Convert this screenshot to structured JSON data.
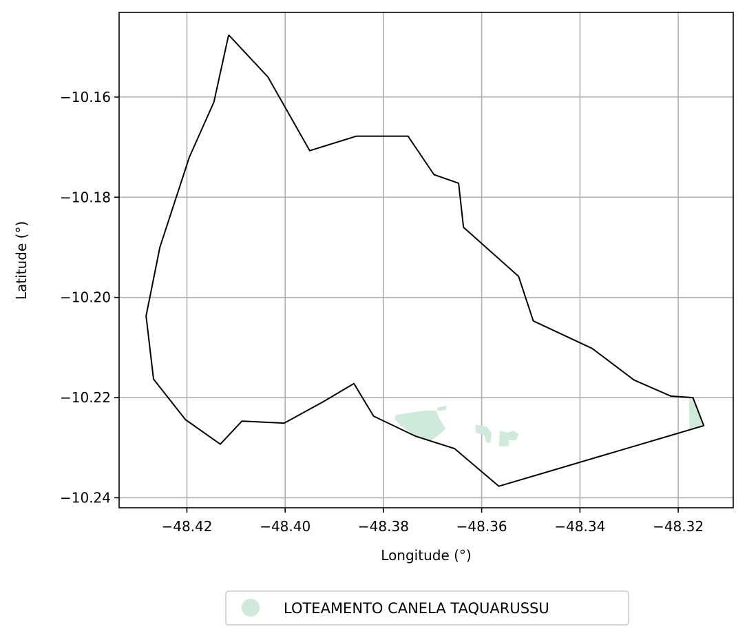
{
  "chart_data": {
    "type": "map",
    "xlabel": "Longitude (°)",
    "ylabel": "Latitude (°)",
    "xlim": [
      -48.4338,
      -48.3088
    ],
    "ylim": [
      -10.242,
      -10.1431
    ],
    "grid": true,
    "x_ticks": [
      -48.42,
      -48.4,
      -48.38,
      -48.36,
      -48.34,
      -48.32
    ],
    "y_ticks": [
      -10.16,
      -10.18,
      -10.2,
      -10.22,
      -10.24
    ],
    "x_tick_labels": [
      "−48.42",
      "−48.40",
      "−48.38",
      "−48.36",
      "−48.34",
      "−48.32"
    ],
    "y_tick_labels": [
      "−10.16",
      "−10.18",
      "−10.20",
      "−10.22",
      "−10.24"
    ],
    "boundary": {
      "color": "#000000",
      "coords": [
        [
          -48.4115,
          -10.1476
        ],
        [
          -48.4035,
          -10.156
        ],
        [
          -48.395,
          -10.1707
        ],
        [
          -48.3855,
          -10.1678
        ],
        [
          -48.375,
          -10.1678
        ],
        [
          -48.3697,
          -10.1755
        ],
        [
          -48.3647,
          -10.1772
        ],
        [
          -48.3637,
          -10.186
        ],
        [
          -48.3525,
          -10.1958
        ],
        [
          -48.3495,
          -10.2047
        ],
        [
          -48.3375,
          -10.2102
        ],
        [
          -48.329,
          -10.2165
        ],
        [
          -48.3215,
          -10.2197
        ],
        [
          -48.317,
          -10.22
        ],
        [
          -48.3148,
          -10.2256
        ],
        [
          -48.3565,
          -10.2377
        ],
        [
          -48.3655,
          -10.2302
        ],
        [
          -48.3735,
          -10.2277
        ],
        [
          -48.382,
          -10.2237
        ],
        [
          -48.386,
          -10.2172
        ],
        [
          -48.3922,
          -10.2208
        ],
        [
          -48.4002,
          -10.2251
        ],
        [
          -48.4088,
          -10.2247
        ],
        [
          -48.4132,
          -10.2293
        ],
        [
          -48.4203,
          -10.2244
        ],
        [
          -48.4268,
          -10.2163
        ],
        [
          -48.4283,
          -10.2037
        ],
        [
          -48.4255,
          -10.19
        ],
        [
          -48.4195,
          -10.172
        ],
        [
          -48.4145,
          -10.161
        ],
        [
          -48.4115,
          -10.1476
        ]
      ]
    },
    "series": [
      {
        "name": "LOTEAMENTO CANELA TAQUARUSSU",
        "color": "#cdeadb",
        "polygons": [
          [
            [
              -48.3775,
              -10.2235
            ],
            [
              -48.3745,
              -10.223
            ],
            [
              -48.3715,
              -10.2226
            ],
            [
              -48.3693,
              -10.2226
            ],
            [
              -48.3685,
              -10.2244
            ],
            [
              -48.3673,
              -10.2262
            ],
            [
              -48.369,
              -10.2277
            ],
            [
              -48.3705,
              -10.2287
            ],
            [
              -48.3735,
              -10.2277
            ],
            [
              -48.3765,
              -10.2256
            ],
            [
              -48.3777,
              -10.2243
            ]
          ],
          [
            [
              -48.369,
              -10.222
            ],
            [
              -48.3672,
              -10.2216
            ],
            [
              -48.3672,
              -10.2224
            ],
            [
              -48.369,
              -10.2227
            ]
          ],
          [
            [
              -48.3613,
              -10.2254
            ],
            [
              -48.359,
              -10.2258
            ],
            [
              -48.358,
              -10.227
            ],
            [
              -48.3582,
              -10.229
            ],
            [
              -48.359,
              -10.229
            ],
            [
              -48.3595,
              -10.2275
            ],
            [
              -48.3612,
              -10.227
            ]
          ],
          [
            [
              -48.3563,
              -10.2266
            ],
            [
              -48.3548,
              -10.227
            ],
            [
              -48.3535,
              -10.2266
            ],
            [
              -48.3525,
              -10.2273
            ],
            [
              -48.353,
              -10.2285
            ],
            [
              -48.3545,
              -10.2285
            ],
            [
              -48.3545,
              -10.2297
            ],
            [
              -48.3565,
              -10.2297
            ]
          ],
          [
            [
              -48.3178,
              -10.22
            ],
            [
              -48.317,
              -10.2201
            ],
            [
              -48.315,
              -10.2256
            ],
            [
              -48.3177,
              -10.2262
            ]
          ]
        ]
      }
    ],
    "legend": {
      "placement": "bottom-center",
      "entries": [
        "LOTEAMENTO CANELA TAQUARUSSU"
      ]
    }
  }
}
